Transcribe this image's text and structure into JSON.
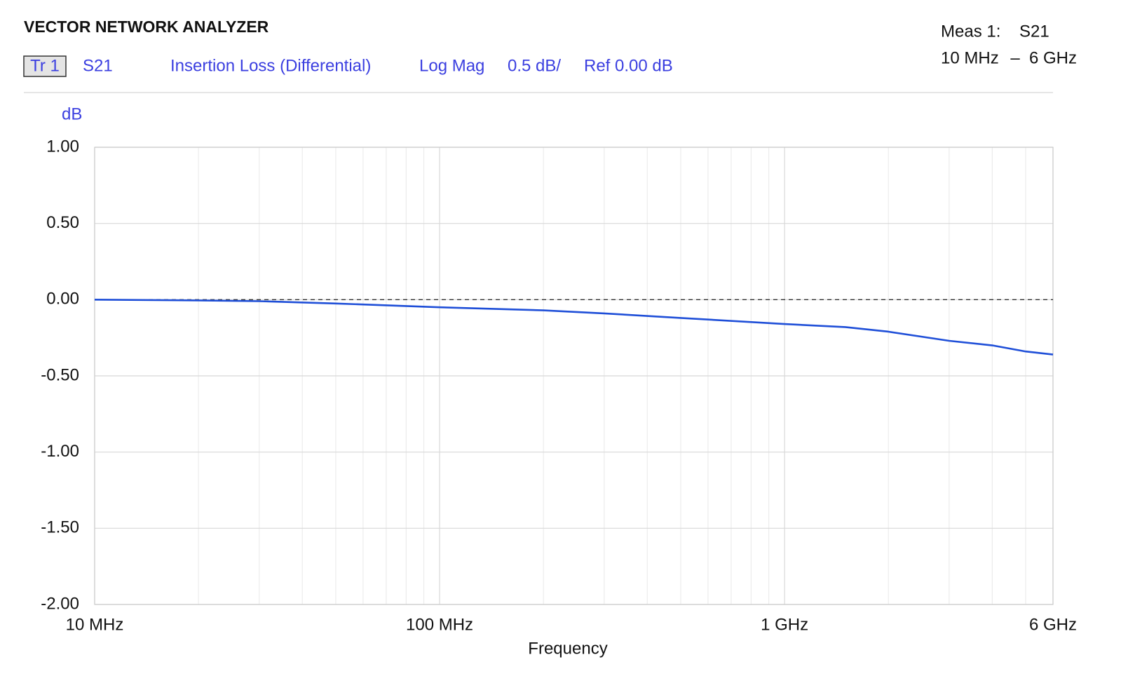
{
  "chart_data": {
    "type": "line",
    "title": "VECTOR NETWORK ANALYZER",
    "trace": "Tr 1",
    "parameter": "S21",
    "measurement": "Insertion Loss (Differential)",
    "format": "Log Mag",
    "scale": "0.5 dB/",
    "reference": "Ref 0.00 dB",
    "meas_label": "Meas 1:",
    "meas_parameter": "S21",
    "span_start": "10 MHz",
    "span_sep": "–",
    "span_stop": "6 GHz",
    "y_label": "dB",
    "x_label": "Frequency",
    "x_log_scale": true,
    "grid": true,
    "reference_line": 0,
    "x": [
      10,
      20,
      30,
      50,
      100,
      200,
      300,
      500,
      1000,
      1500,
      2000,
      3000,
      4000,
      5000,
      6000
    ],
    "series": [
      {
        "name": "S21",
        "color": "#1f4fd8",
        "values": [
          0.0,
          -0.005,
          -0.01,
          -0.025,
          -0.05,
          -0.07,
          -0.09,
          -0.12,
          -0.16,
          -0.18,
          -0.21,
          -0.27,
          -0.3,
          -0.34,
          -0.36
        ]
      }
    ],
    "xlim": [
      10,
      6000
    ],
    "xticks": [
      {
        "value": 10,
        "label": "10 MHz"
      },
      {
        "value": 100,
        "label": "100 MHz"
      },
      {
        "value": 1000,
        "label": "1 GHz"
      },
      {
        "value": 6000,
        "label": "6 GHz"
      }
    ],
    "ylim": [
      -2,
      1
    ],
    "yticks": [
      {
        "value": 1,
        "label": "1.00"
      },
      {
        "value": 0.5,
        "label": "0.50"
      },
      {
        "value": 0,
        "label": "0.00"
      },
      {
        "value": -0.5,
        "label": "-0.50"
      },
      {
        "value": -1,
        "label": "-1.00"
      },
      {
        "value": -1.5,
        "label": "-1.50"
      },
      {
        "value": -2,
        "label": "-2.00"
      }
    ]
  }
}
